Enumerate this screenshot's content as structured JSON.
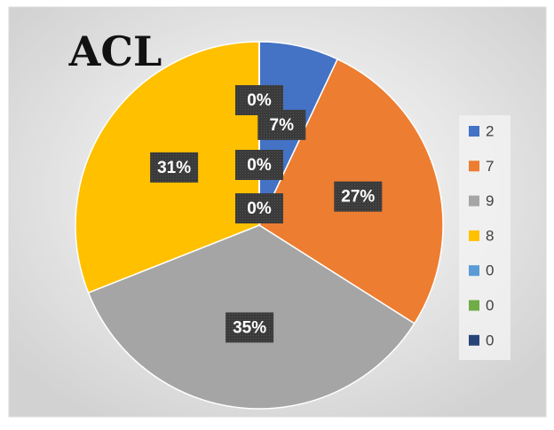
{
  "chart_data": {
    "type": "pie",
    "title": "ACL",
    "categories": [
      "2",
      "7",
      "9",
      "8",
      "0",
      "0",
      "0"
    ],
    "values": [
      7,
      27,
      35,
      31,
      0,
      0,
      0
    ],
    "value_labels": [
      "7%",
      "27%",
      "35%",
      "31%",
      "0%",
      "0%",
      "0%"
    ],
    "colors": [
      "#4472c4",
      "#ed7d31",
      "#a5a5a5",
      "#ffc000",
      "#5b9bd5",
      "#70ad47",
      "#264478"
    ],
    "legend": "right"
  }
}
